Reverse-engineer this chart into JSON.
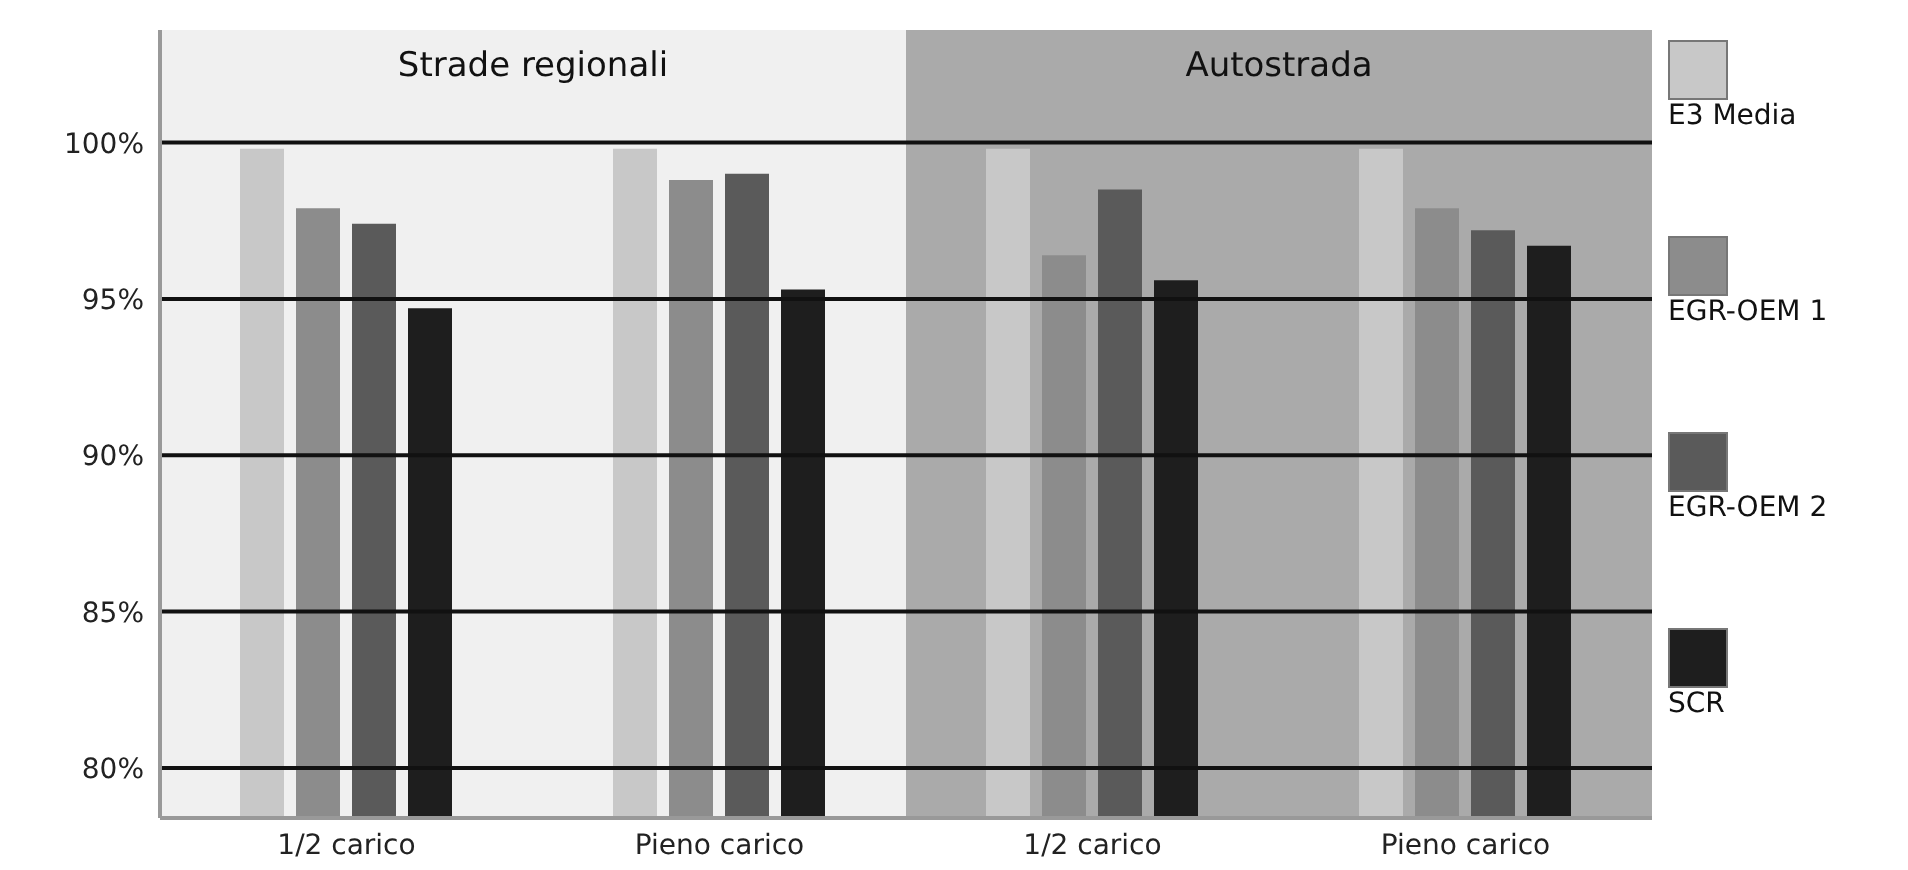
{
  "chart_data": [
    {
      "type": "bar",
      "title": "Strade regionali",
      "categories": [
        "1/2 carico",
        "Pieno carico"
      ],
      "series": [
        {
          "color": "#c8c8c8",
          "values": [
            99.8,
            99.8
          ]
        },
        {
          "color": "#8c8c8c",
          "values": [
            97.9,
            98.8
          ]
        },
        {
          "color": "#5a5a5a",
          "values": [
            97.4,
            99.0
          ]
        },
        {
          "color": "#1e1e1e",
          "values": [
            94.7,
            95.3
          ]
        }
      ],
      "ylim": [
        78.4,
        103.6
      ],
      "yticks": [
        {
          "value": 80,
          "label": "80%"
        },
        {
          "value": 85,
          "label": "85%"
        },
        {
          "value": 90,
          "label": "90%"
        },
        {
          "value": 95,
          "label": "95%"
        },
        {
          "value": 100,
          "label": "100%"
        }
      ],
      "grid": "y"
    },
    {
      "type": "bar",
      "title": "Autostrada",
      "categories": [
        "1/2 carico",
        "Pieno carico"
      ],
      "series": [
        {
          "name": "E3 Media",
          "color": "#c8c8c8",
          "values": [
            99.8,
            99.8
          ]
        },
        {
          "name": "EGR-OEM 1",
          "color": "#8c8c8c",
          "values": [
            96.4,
            97.9
          ]
        },
        {
          "name": "EGR-OEM 2",
          "color": "#5a5a5a",
          "values": [
            98.5,
            97.2
          ]
        },
        {
          "name": "SCR",
          "color": "#1e1e1e",
          "values": [
            95.6,
            96.7
          ]
        }
      ],
      "ylim": [
        78.4,
        103.6
      ],
      "yticks": [
        80,
        85,
        90,
        95,
        100
      ],
      "tick_labels": "x",
      "grid": "y",
      "legend": "right"
    }
  ]
}
